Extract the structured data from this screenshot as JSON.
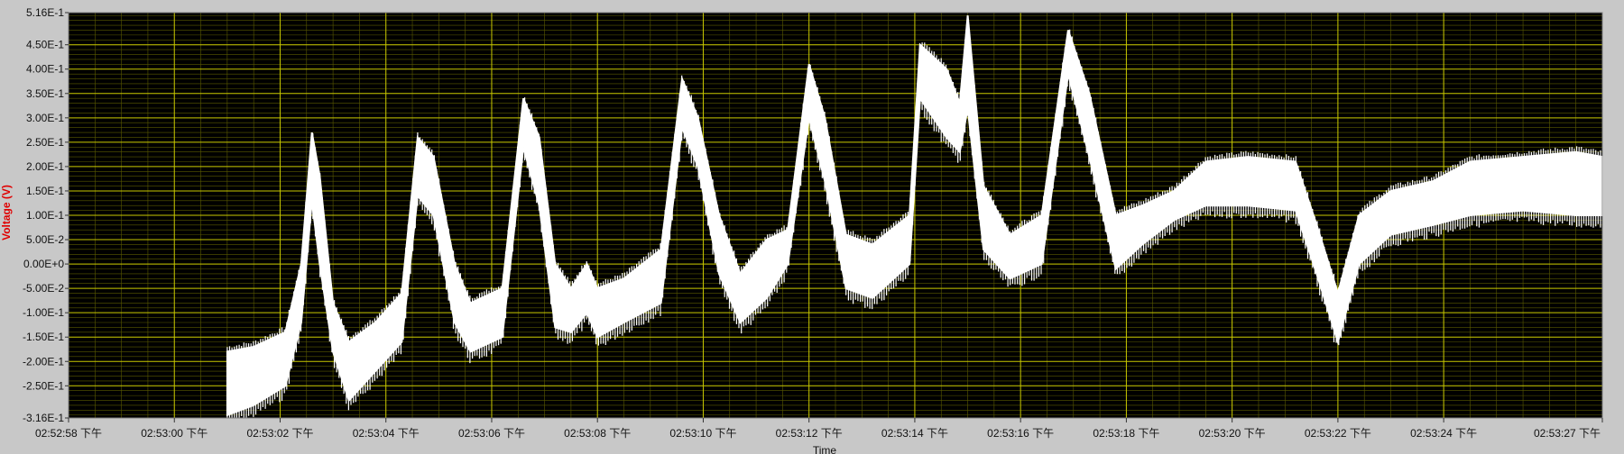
{
  "chart_data": {
    "type": "line",
    "title": "",
    "xlabel": "Time",
    "ylabel": "Voltage (V)",
    "ylim": [
      -0.316,
      0.516
    ],
    "xlim_seconds": [
      0,
      29
    ],
    "grid": true,
    "colors": {
      "plot_background": "#000000",
      "major_grid": "#c8c800",
      "minor_grid": "#5a5a00",
      "signal": "#ffffff",
      "ylabel": "#e00000",
      "frame": "#c8c8c8"
    },
    "y_ticks": [
      {
        "value": 0.516,
        "label": "5.16E-1"
      },
      {
        "value": 0.45,
        "label": "4.50E-1"
      },
      {
        "value": 0.4,
        "label": "4.00E-1"
      },
      {
        "value": 0.35,
        "label": "3.50E-1"
      },
      {
        "value": 0.3,
        "label": "3.00E-1"
      },
      {
        "value": 0.25,
        "label": "2.50E-1"
      },
      {
        "value": 0.2,
        "label": "2.00E-1"
      },
      {
        "value": 0.15,
        "label": "1.50E-1"
      },
      {
        "value": 0.1,
        "label": "1.00E-1"
      },
      {
        "value": 0.05,
        "label": "5.00E-2"
      },
      {
        "value": 0.0,
        "label": "0.00E+0"
      },
      {
        "value": -0.05,
        "label": "-5.00E-2"
      },
      {
        "value": -0.1,
        "label": "-1.00E-1"
      },
      {
        "value": -0.15,
        "label": "-1.50E-1"
      },
      {
        "value": -0.2,
        "label": "-2.00E-1"
      },
      {
        "value": -0.25,
        "label": "-2.50E-1"
      },
      {
        "value": -0.316,
        "label": "-3.16E-1"
      }
    ],
    "x_ticks": [
      {
        "value": 0,
        "label": "02:52:58 下午"
      },
      {
        "value": 2,
        "label": "02:53:00 下午"
      },
      {
        "value": 4,
        "label": "02:53:02 下午"
      },
      {
        "value": 6,
        "label": "02:53:04 下午"
      },
      {
        "value": 8,
        "label": "02:53:06 下午"
      },
      {
        "value": 10,
        "label": "02:53:08 下午"
      },
      {
        "value": 12,
        "label": "02:53:10 下午"
      },
      {
        "value": 14,
        "label": "02:53:12 下午"
      },
      {
        "value": 16,
        "label": "02:53:14 下午"
      },
      {
        "value": 18,
        "label": "02:53:16 下午"
      },
      {
        "value": 20,
        "label": "02:53:18 下午"
      },
      {
        "value": 22,
        "label": "02:53:20 下午"
      },
      {
        "value": 24,
        "label": "02:53:22 下午"
      },
      {
        "value": 26,
        "label": "02:53:24 下午"
      },
      {
        "value": 29,
        "label": "02:53:27 下午"
      }
    ],
    "series": [
      {
        "envelope": [
          {
            "x": 3.0,
            "lo": -0.31,
            "hi": -0.18
          },
          {
            "x": 3.5,
            "lo": -0.29,
            "hi": -0.17
          },
          {
            "x": 4.1,
            "lo": -0.25,
            "hi": -0.14
          },
          {
            "x": 4.4,
            "lo": -0.12,
            "hi": 0.0
          },
          {
            "x": 4.6,
            "lo": 0.13,
            "hi": 0.27
          },
          {
            "x": 4.75,
            "lo": 0.0,
            "hi": 0.18
          },
          {
            "x": 5.0,
            "lo": -0.18,
            "hi": -0.08
          },
          {
            "x": 5.3,
            "lo": -0.28,
            "hi": -0.16
          },
          {
            "x": 5.8,
            "lo": -0.22,
            "hi": -0.12
          },
          {
            "x": 6.3,
            "lo": -0.16,
            "hi": -0.06
          },
          {
            "x": 6.6,
            "lo": 0.14,
            "hi": 0.26
          },
          {
            "x": 6.9,
            "lo": 0.1,
            "hi": 0.22
          },
          {
            "x": 7.3,
            "lo": -0.12,
            "hi": 0.0
          },
          {
            "x": 7.6,
            "lo": -0.18,
            "hi": -0.08
          },
          {
            "x": 8.2,
            "lo": -0.15,
            "hi": -0.05
          },
          {
            "x": 8.6,
            "lo": 0.24,
            "hi": 0.34
          },
          {
            "x": 8.9,
            "lo": 0.12,
            "hi": 0.26
          },
          {
            "x": 9.2,
            "lo": -0.13,
            "hi": 0.0
          },
          {
            "x": 9.5,
            "lo": -0.14,
            "hi": -0.05
          },
          {
            "x": 9.8,
            "lo": -0.1,
            "hi": 0.0
          },
          {
            "x": 10.0,
            "lo": -0.15,
            "hi": -0.05
          },
          {
            "x": 10.5,
            "lo": -0.12,
            "hi": -0.03
          },
          {
            "x": 11.2,
            "lo": -0.08,
            "hi": 0.03
          },
          {
            "x": 11.6,
            "lo": 0.28,
            "hi": 0.38
          },
          {
            "x": 11.9,
            "lo": 0.2,
            "hi": 0.3
          },
          {
            "x": 12.3,
            "lo": -0.02,
            "hi": 0.1
          },
          {
            "x": 12.7,
            "lo": -0.12,
            "hi": -0.02
          },
          {
            "x": 13.2,
            "lo": -0.07,
            "hi": 0.05
          },
          {
            "x": 13.6,
            "lo": 0.0,
            "hi": 0.07
          },
          {
            "x": 14.0,
            "lo": 0.3,
            "hi": 0.41
          },
          {
            "x": 14.3,
            "lo": 0.17,
            "hi": 0.3
          },
          {
            "x": 14.7,
            "lo": -0.05,
            "hi": 0.06
          },
          {
            "x": 15.2,
            "lo": -0.07,
            "hi": 0.04
          },
          {
            "x": 15.9,
            "lo": 0.0,
            "hi": 0.1
          },
          {
            "x": 16.1,
            "lo": 0.34,
            "hi": 0.45
          },
          {
            "x": 16.6,
            "lo": 0.26,
            "hi": 0.4
          },
          {
            "x": 16.85,
            "lo": 0.23,
            "hi": 0.33
          },
          {
            "x": 17.0,
            "lo": 0.32,
            "hi": 0.51
          },
          {
            "x": 17.3,
            "lo": 0.03,
            "hi": 0.16
          },
          {
            "x": 17.8,
            "lo": -0.03,
            "hi": 0.06
          },
          {
            "x": 18.4,
            "lo": 0.0,
            "hi": 0.1
          },
          {
            "x": 18.9,
            "lo": 0.39,
            "hi": 0.48
          },
          {
            "x": 19.3,
            "lo": 0.22,
            "hi": 0.35
          },
          {
            "x": 19.8,
            "lo": -0.01,
            "hi": 0.1
          },
          {
            "x": 20.3,
            "lo": 0.04,
            "hi": 0.12
          },
          {
            "x": 20.9,
            "lo": 0.09,
            "hi": 0.15
          },
          {
            "x": 21.5,
            "lo": 0.12,
            "hi": 0.21
          },
          {
            "x": 22.3,
            "lo": 0.12,
            "hi": 0.22
          },
          {
            "x": 23.2,
            "lo": 0.11,
            "hi": 0.21
          },
          {
            "x": 23.6,
            "lo": -0.02,
            "hi": 0.08
          },
          {
            "x": 24.0,
            "lo": -0.16,
            "hi": -0.06
          },
          {
            "x": 24.4,
            "lo": 0.0,
            "hi": 0.1
          },
          {
            "x": 25.0,
            "lo": 0.06,
            "hi": 0.15
          },
          {
            "x": 25.8,
            "lo": 0.08,
            "hi": 0.17
          },
          {
            "x": 26.5,
            "lo": 0.1,
            "hi": 0.21
          },
          {
            "x": 27.5,
            "lo": 0.11,
            "hi": 0.22
          },
          {
            "x": 28.5,
            "lo": 0.1,
            "hi": 0.23
          },
          {
            "x": 29.0,
            "lo": 0.1,
            "hi": 0.22
          }
        ]
      }
    ]
  }
}
